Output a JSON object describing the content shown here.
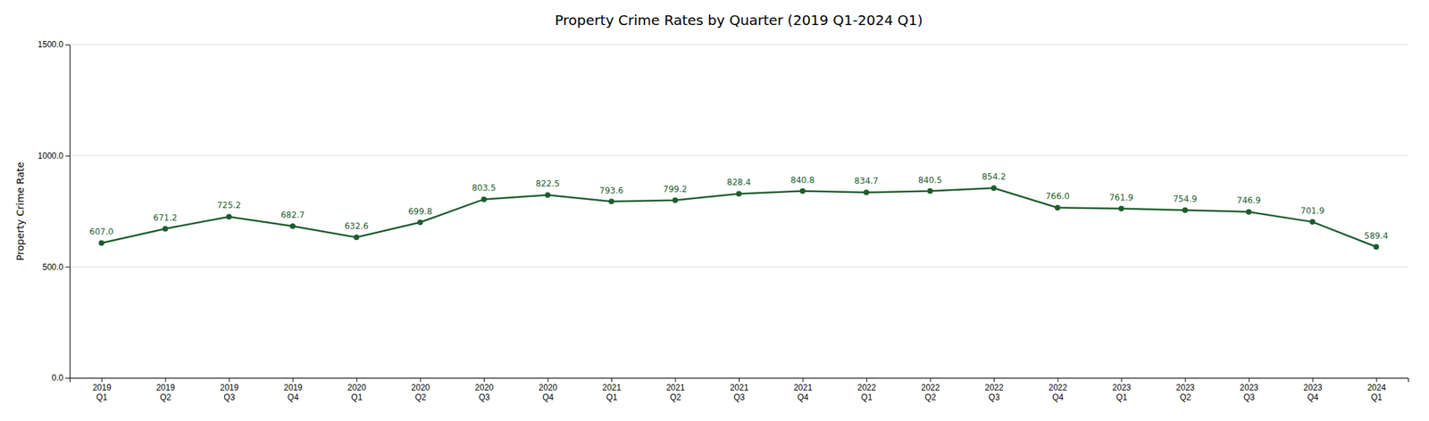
{
  "chart_data": {
    "type": "line",
    "title": "Property Crime Rates by Quarter (2019 Q1-2024 Q1)",
    "ylabel": "Property Crime Rate",
    "categories": [
      "2019\nQ1",
      "2019\nQ2",
      "2019\nQ3",
      "2019\nQ4",
      "2020\nQ1",
      "2020\nQ2",
      "2020\nQ3",
      "2020\nQ4",
      "2021\nQ1",
      "2021\nQ2",
      "2021\nQ3",
      "2021\nQ4",
      "2022\nQ1",
      "2022\nQ2",
      "2022\nQ3",
      "2022\nQ4",
      "2023\nQ1",
      "2023\nQ2",
      "2023\nQ3",
      "2023\nQ4",
      "2024\nQ1"
    ],
    "values": [
      607.0,
      671.2,
      725.2,
      682.7,
      632.6,
      699.8,
      803.5,
      822.5,
      793.6,
      799.2,
      828.4,
      840.8,
      834.7,
      840.5,
      854.2,
      766.0,
      761.9,
      754.9,
      746.9,
      701.9,
      589.4
    ],
    "value_labels": [
      "607.0",
      "671.2",
      "725.2",
      "682.7",
      "632.6",
      "699.8",
      "803.5",
      "822.5",
      "793.6",
      "799.2",
      "828.4",
      "840.8",
      "834.7",
      "840.5",
      "854.2",
      "766.0",
      "761.9",
      "754.9",
      "746.9",
      "701.9",
      "589.4"
    ],
    "color": "#1e5c2e",
    "marker": "circle",
    "ylim": [
      0.0,
      1500.0
    ],
    "yticks": [
      {
        "value": 0.0,
        "label": "0.0"
      },
      {
        "value": 500.0,
        "label": "500.0"
      },
      {
        "value": 1000.0,
        "label": "1000.0"
      },
      {
        "value": 1500.0,
        "label": "1500.0"
      }
    ],
    "grid": true,
    "data_labels": true
  }
}
